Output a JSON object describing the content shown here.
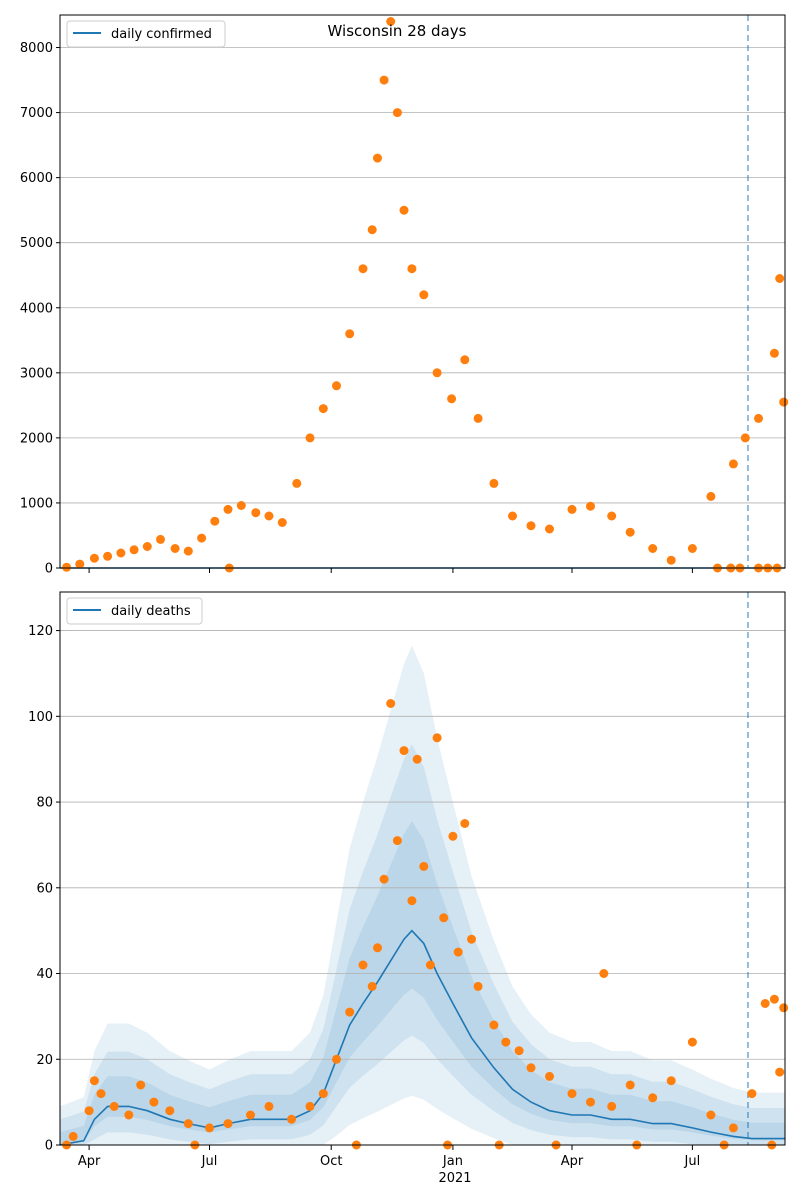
{
  "colors": {
    "line": "#1f77b4",
    "points": "#ff7f0e",
    "band": "#1f77b4",
    "grid": "#b0b0b0",
    "vline": "#1f77b4"
  },
  "chart_data": {
    "title": "Wisconsin 28 days",
    "x_ticks": [
      {
        "date": "2020-04-01",
        "label": "Apr"
      },
      {
        "date": "2020-07-01",
        "label": "Jul"
      },
      {
        "date": "2020-10-01",
        "label": "Oct"
      },
      {
        "date": "2021-01-01",
        "label": "Jan"
      },
      {
        "date": "2021-04-01",
        "label": "Apr"
      },
      {
        "date": "2021-07-01",
        "label": "Jul"
      }
    ],
    "x_year_label": "2021",
    "x_range": [
      "2020-03-10",
      "2021-09-09"
    ],
    "forecast_date": "2021-08-12",
    "panels": [
      {
        "type": "scatter",
        "legend": "daily confirmed",
        "legend_position": "top-left",
        "ylim": [
          0,
          8500
        ],
        "y_ticks": [
          0,
          1000,
          2000,
          3000,
          4000,
          5000,
          6000,
          7000,
          8000
        ],
        "grid": true,
        "model_line": [
          [
            "2020-03-10",
            0
          ],
          [
            "2021-09-09",
            0
          ]
        ],
        "points": [
          [
            "2020-03-15",
            10
          ],
          [
            "2020-03-25",
            60
          ],
          [
            "2020-04-05",
            150
          ],
          [
            "2020-04-15",
            180
          ],
          [
            "2020-04-25",
            230
          ],
          [
            "2020-05-05",
            280
          ],
          [
            "2020-05-15",
            330
          ],
          [
            "2020-05-25",
            440
          ],
          [
            "2020-06-05",
            300
          ],
          [
            "2020-06-15",
            260
          ],
          [
            "2020-06-25",
            460
          ],
          [
            "2020-07-05",
            720
          ],
          [
            "2020-07-15",
            900
          ],
          [
            "2020-07-25",
            960
          ],
          [
            "2020-08-05",
            850
          ],
          [
            "2020-08-15",
            800
          ],
          [
            "2020-08-25",
            700
          ],
          [
            "2020-09-05",
            1300
          ],
          [
            "2020-09-15",
            2000
          ],
          [
            "2020-09-25",
            2450
          ],
          [
            "2020-10-05",
            2800
          ],
          [
            "2020-10-15",
            3600
          ],
          [
            "2020-10-25",
            4600
          ],
          [
            "2020-11-01",
            5200
          ],
          [
            "2020-11-05",
            6300
          ],
          [
            "2020-11-10",
            7500
          ],
          [
            "2020-11-15",
            8400
          ],
          [
            "2020-11-20",
            7000
          ],
          [
            "2020-11-25",
            5500
          ],
          [
            "2020-12-01",
            4600
          ],
          [
            "2020-12-10",
            4200
          ],
          [
            "2020-12-20",
            3000
          ],
          [
            "2020-12-31",
            2600
          ],
          [
            "2021-01-10",
            3200
          ],
          [
            "2021-01-20",
            2300
          ],
          [
            "2021-02-01",
            1300
          ],
          [
            "2021-02-15",
            800
          ],
          [
            "2021-03-01",
            650
          ],
          [
            "2021-03-15",
            600
          ],
          [
            "2021-04-01",
            900
          ],
          [
            "2021-04-15",
            950
          ],
          [
            "2021-05-01",
            800
          ],
          [
            "2021-05-15",
            550
          ],
          [
            "2021-06-01",
            300
          ],
          [
            "2021-06-15",
            120
          ],
          [
            "2021-07-01",
            300
          ],
          [
            "2021-07-15",
            1100
          ],
          [
            "2021-08-01",
            1600
          ],
          [
            "2021-08-10",
            2000
          ],
          [
            "2021-08-20",
            2300
          ],
          [
            "2021-09-01",
            3300
          ],
          [
            "2021-09-05",
            4450
          ],
          [
            "2021-09-08",
            2550
          ]
        ],
        "zeros": [
          "2020-07-16",
          "2021-07-20",
          "2021-07-30",
          "2021-08-06",
          "2021-08-20",
          "2021-08-27",
          "2021-09-03"
        ]
      },
      {
        "type": "scatter",
        "legend": "daily deaths",
        "legend_position": "top-left",
        "ylim": [
          0,
          129
        ],
        "y_ticks": [
          0,
          20,
          40,
          60,
          80,
          100,
          120
        ],
        "grid": true,
        "model_line": [
          [
            "2020-03-10",
            0
          ],
          [
            "2020-03-28",
            1
          ],
          [
            "2020-04-05",
            6
          ],
          [
            "2020-04-15",
            9
          ],
          [
            "2020-05-01",
            9
          ],
          [
            "2020-05-15",
            8
          ],
          [
            "2020-06-01",
            6
          ],
          [
            "2020-06-15",
            5
          ],
          [
            "2020-07-01",
            4
          ],
          [
            "2020-07-15",
            5
          ],
          [
            "2020-08-01",
            6
          ],
          [
            "2020-08-15",
            6
          ],
          [
            "2020-09-01",
            6
          ],
          [
            "2020-09-15",
            8
          ],
          [
            "2020-09-25",
            12
          ],
          [
            "2020-10-05",
            20
          ],
          [
            "2020-10-15",
            28
          ],
          [
            "2020-10-25",
            33
          ],
          [
            "2020-11-05",
            38
          ],
          [
            "2020-11-15",
            43
          ],
          [
            "2020-11-25",
            48
          ],
          [
            "2020-12-01",
            50
          ],
          [
            "2020-12-10",
            47
          ],
          [
            "2020-12-20",
            40
          ],
          [
            "2021-01-01",
            33
          ],
          [
            "2021-01-15",
            25
          ],
          [
            "2021-02-01",
            18
          ],
          [
            "2021-02-15",
            13
          ],
          [
            "2021-03-01",
            10
          ],
          [
            "2021-03-15",
            8
          ],
          [
            "2021-04-01",
            7
          ],
          [
            "2021-04-15",
            7
          ],
          [
            "2021-05-01",
            6
          ],
          [
            "2021-05-15",
            6
          ],
          [
            "2021-06-01",
            5
          ],
          [
            "2021-06-15",
            5
          ],
          [
            "2021-07-01",
            4
          ],
          [
            "2021-07-15",
            3
          ],
          [
            "2021-08-01",
            2
          ],
          [
            "2021-08-15",
            1.5
          ],
          [
            "2021-09-01",
            1.5
          ],
          [
            "2021-09-09",
            1.5
          ]
        ],
        "points": [
          [
            "2020-03-20",
            2
          ],
          [
            "2020-04-01",
            8
          ],
          [
            "2020-04-05",
            15
          ],
          [
            "2020-04-10",
            12
          ],
          [
            "2020-04-20",
            9
          ],
          [
            "2020-05-01",
            7
          ],
          [
            "2020-05-10",
            14
          ],
          [
            "2020-05-20",
            10
          ],
          [
            "2020-06-01",
            8
          ],
          [
            "2020-06-15",
            5
          ],
          [
            "2020-07-01",
            4
          ],
          [
            "2020-07-15",
            5
          ],
          [
            "2020-08-01",
            7
          ],
          [
            "2020-08-15",
            9
          ],
          [
            "2020-09-01",
            6
          ],
          [
            "2020-09-15",
            9
          ],
          [
            "2020-09-25",
            12
          ],
          [
            "2020-10-05",
            20
          ],
          [
            "2020-10-15",
            31
          ],
          [
            "2020-10-25",
            42
          ],
          [
            "2020-11-01",
            37
          ],
          [
            "2020-11-05",
            46
          ],
          [
            "2020-11-10",
            62
          ],
          [
            "2020-11-15",
            103
          ],
          [
            "2020-11-20",
            71
          ],
          [
            "2020-11-25",
            92
          ],
          [
            "2020-12-01",
            57
          ],
          [
            "2020-12-05",
            90
          ],
          [
            "2020-12-10",
            65
          ],
          [
            "2020-12-15",
            42
          ],
          [
            "2020-12-20",
            95
          ],
          [
            "2020-12-25",
            53
          ],
          [
            "2021-01-01",
            72
          ],
          [
            "2021-01-05",
            45
          ],
          [
            "2021-01-10",
            75
          ],
          [
            "2021-01-15",
            48
          ],
          [
            "2021-01-20",
            37
          ],
          [
            "2021-02-01",
            28
          ],
          [
            "2021-02-10",
            24
          ],
          [
            "2021-02-20",
            22
          ],
          [
            "2021-03-01",
            18
          ],
          [
            "2021-03-15",
            16
          ],
          [
            "2021-04-01",
            12
          ],
          [
            "2021-04-15",
            10
          ],
          [
            "2021-04-25",
            40
          ],
          [
            "2021-05-01",
            9
          ],
          [
            "2021-05-15",
            14
          ],
          [
            "2021-06-01",
            11
          ],
          [
            "2021-06-15",
            15
          ],
          [
            "2021-07-01",
            24
          ],
          [
            "2021-07-15",
            7
          ],
          [
            "2021-08-01",
            4
          ],
          [
            "2021-08-15",
            12
          ],
          [
            "2021-08-25",
            33
          ],
          [
            "2021-09-01",
            34
          ],
          [
            "2021-09-05",
            17
          ],
          [
            "2021-09-08",
            32
          ]
        ],
        "zeros": [
          "2020-03-15",
          "2020-06-20",
          "2020-10-20",
          "2020-12-28",
          "2021-02-05",
          "2021-03-20",
          "2021-05-20",
          "2021-07-25",
          "2021-08-30"
        ]
      }
    ]
  }
}
